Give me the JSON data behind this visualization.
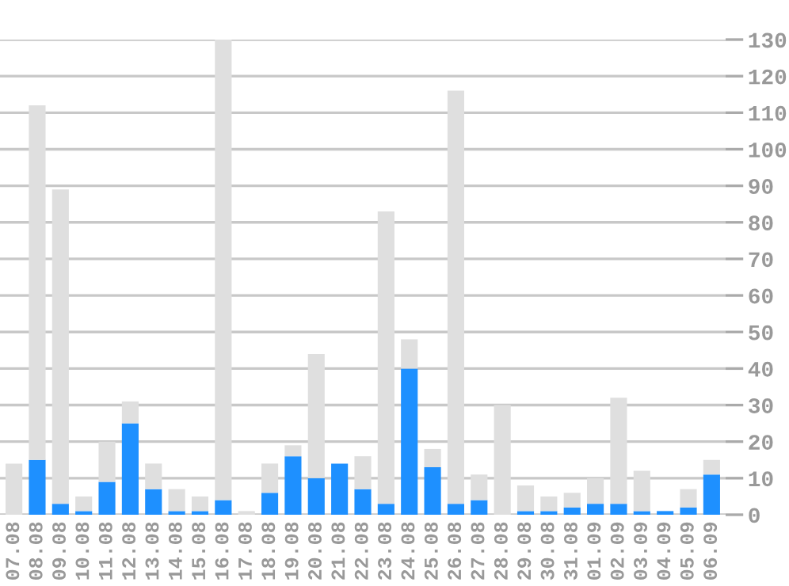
{
  "chart_data": {
    "type": "bar",
    "categories": [
      "07.08",
      "08.08",
      "09.08",
      "10.08",
      "11.08",
      "12.08",
      "13.08",
      "14.08",
      "15.08",
      "16.08",
      "17.08",
      "18.08",
      "19.08",
      "20.08",
      "21.08",
      "22.08",
      "23.08",
      "24.08",
      "25.08",
      "26.08",
      "27.08",
      "28.08",
      "29.08",
      "30.08",
      "31.08",
      "01.09",
      "02.09",
      "03.09",
      "04.09",
      "05.09",
      "06.09"
    ],
    "series": [
      {
        "color": "#1e90ff",
        "values": [
          0,
          15,
          3,
          1,
          9,
          25,
          7,
          1,
          1,
          4,
          0,
          6,
          16,
          10,
          14,
          7,
          3,
          40,
          13,
          3,
          4,
          0,
          1,
          1,
          2,
          3,
          3,
          1,
          1,
          2,
          11
        ]
      },
      {
        "color": "#dfdfdf",
        "values": [
          14,
          97,
          86,
          4,
          11,
          6,
          7,
          6,
          4,
          126,
          1,
          8,
          3,
          34,
          0,
          9,
          80,
          8,
          5,
          113,
          7,
          30,
          7,
          4,
          4,
          7,
          29,
          11,
          0,
          5,
          4
        ]
      }
    ],
    "stacked": true,
    "ylim": [
      0,
      130
    ],
    "yticks": [
      0,
      10,
      20,
      30,
      40,
      50,
      60,
      70,
      80,
      90,
      100,
      110,
      120,
      130
    ],
    "grid": "y",
    "legend": false
  }
}
